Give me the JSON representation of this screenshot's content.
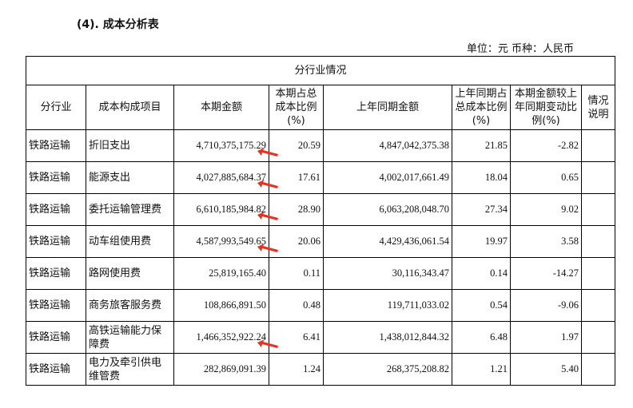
{
  "section_title": "(4). 成本分析表",
  "unit_line": "单位：元  币种：人民币",
  "table": {
    "group_header": "分行业情况",
    "columns": [
      "分行业",
      "成本构成项目",
      "本期金额",
      "本期占总成本比例(%)",
      "上年同期金额",
      "上年同期占总成本比例(%)",
      "本期金额较上年同期变动比例(%)",
      "情况说明"
    ],
    "rows": [
      {
        "industry": "铁路运输",
        "item": "折旧支出",
        "current": "4,710,375,175.29",
        "current_pct": "20.59",
        "prior": "4,847,042,375.38",
        "prior_pct": "21.85",
        "change": "-2.82",
        "note": ""
      },
      {
        "industry": "铁路运输",
        "item": "能源支出",
        "current": "4,027,885,684.37",
        "current_pct": "17.61",
        "prior": "4,002,017,661.49",
        "prior_pct": "18.04",
        "change": "0.65",
        "note": ""
      },
      {
        "industry": "铁路运输",
        "item": "委托运输管理费",
        "current": "6,610,185,984.82",
        "current_pct": "28.90",
        "prior": "6,063,208,048.70",
        "prior_pct": "27.34",
        "change": "9.02",
        "note": ""
      },
      {
        "industry": "铁路运输",
        "item": "动车组使用费",
        "current": "4,587,993,549.65",
        "current_pct": "20.06",
        "prior": "4,429,436,061.54",
        "prior_pct": "19.97",
        "change": "3.58",
        "note": ""
      },
      {
        "industry": "铁路运输",
        "item": "路网使用费",
        "current": "25,819,165.40",
        "current_pct": "0.11",
        "prior": "30,116,343.47",
        "prior_pct": "0.14",
        "change": "-14.27",
        "note": ""
      },
      {
        "industry": "铁路运输",
        "item": "商务旅客服务费",
        "current": "108,866,891.50",
        "current_pct": "0.48",
        "prior": "119,711,033.02",
        "prior_pct": "0.54",
        "change": "-9.06",
        "note": ""
      },
      {
        "industry": "铁路运输",
        "item": "高铁运输能力保障费",
        "current": "1,466,352,922.24",
        "current_pct": "6.41",
        "prior": "1,438,012,844.32",
        "prior_pct": "6.48",
        "change": "1.97",
        "note": ""
      },
      {
        "industry": "铁路运输",
        "item": "电力及牵引供电维管费",
        "current": "282,869,091.39",
        "current_pct": "1.24",
        "prior": "268,375,208.82",
        "prior_pct": "1.21",
        "change": "5.40",
        "note": ""
      }
    ]
  },
  "annotations": {
    "arrow_color": "#e8321e",
    "arrow_icon": "red-arrow-icon"
  }
}
